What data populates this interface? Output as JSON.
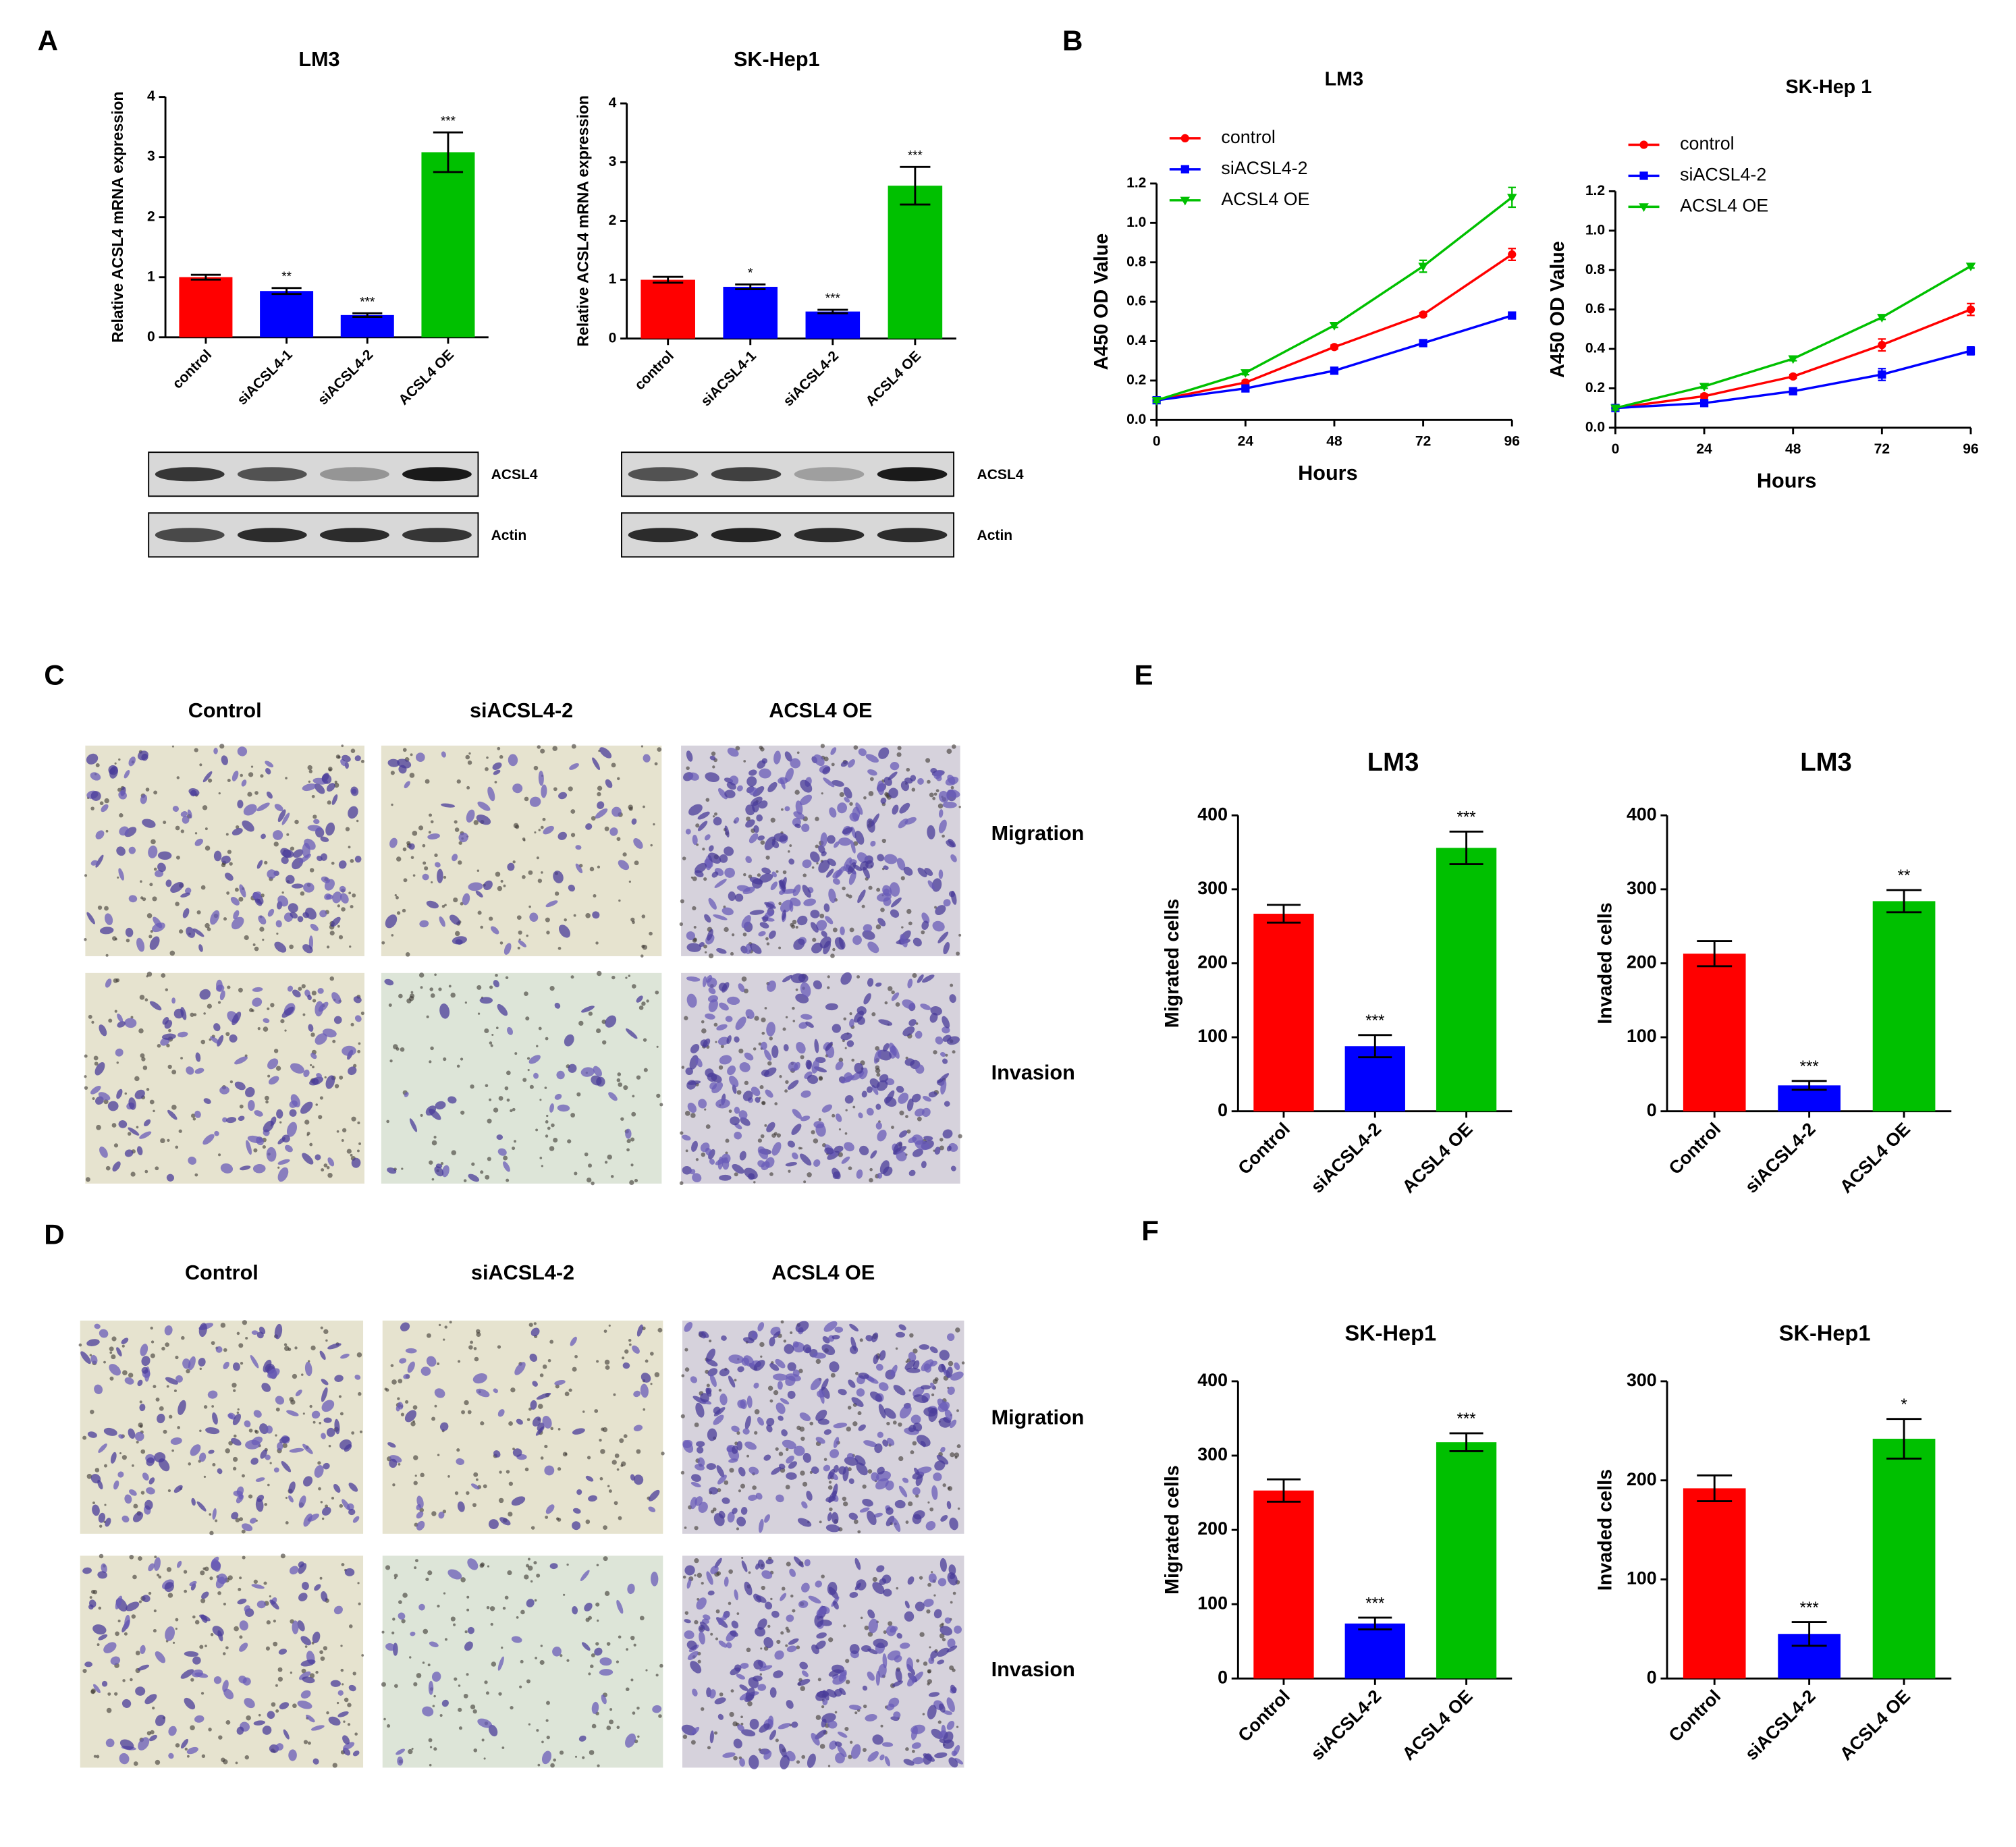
{
  "panel_labels": [
    "A",
    "B",
    "C",
    "D",
    "E",
    "F"
  ],
  "blots": [
    {
      "bands": [
        "ACSL4",
        "Actin"
      ]
    },
    {
      "bands": [
        "ACSL4",
        "Actin"
      ]
    }
  ],
  "micrographs": [
    {
      "columns": [
        "Control",
        "siACSL4-2",
        "ACSL4 OE"
      ],
      "rows": [
        "Migration",
        "Invasion"
      ]
    },
    {
      "columns": [
        "Control",
        "siACSL4-2",
        "ACSL4 OE"
      ],
      "rows": [
        "Migration",
        "Invasion"
      ]
    }
  ],
  "chart_data": [
    {
      "type": "bar",
      "title": "LM3",
      "y_label": "Relative ACSL4 mRNA expression",
      "categories": [
        "control",
        "siACSL4-1",
        "siACSL4-2",
        "ACSL4 OE"
      ],
      "values": [
        1.0,
        0.77,
        0.37,
        3.08
      ],
      "errors": [
        0.04,
        0.05,
        0.03,
        0.33
      ],
      "annotations": [
        null,
        "**",
        "***",
        "***"
      ],
      "colors": [
        "#ff0000",
        "#0000ff",
        "#0000ff",
        "#00c000"
      ],
      "ylim": [
        0,
        4
      ],
      "yticks": [
        0,
        1,
        2,
        3,
        4
      ]
    },
    {
      "type": "bar",
      "title": "SK-Hep1",
      "y_label": "Relative ACSL4 mRNA expression",
      "categories": [
        "control",
        "siACSL4-1",
        "siACSL4-2",
        "ACSL4 OE"
      ],
      "values": [
        1.0,
        0.88,
        0.46,
        2.6
      ],
      "errors": [
        0.05,
        0.04,
        0.03,
        0.32
      ],
      "annotations": [
        null,
        "*",
        "***",
        "***"
      ],
      "colors": [
        "#ff0000",
        "#0000ff",
        "#0000ff",
        "#00c000"
      ],
      "ylim": [
        0,
        4
      ],
      "yticks": [
        0,
        1,
        2,
        3,
        4
      ]
    },
    {
      "type": "line",
      "title": "LM3",
      "x_label": "Hours",
      "y_label": "A450 OD Value",
      "x": [
        0,
        24,
        48,
        72,
        96
      ],
      "series": [
        {
          "name": "control",
          "color": "#ff0000",
          "marker": "circle",
          "values": [
            0.1,
            0.19,
            0.37,
            0.535,
            0.84
          ],
          "errors": [
            0.01,
            0.01,
            0.01,
            0.01,
            0.03
          ]
        },
        {
          "name": "siACSL4-2",
          "color": "#0000ff",
          "marker": "square",
          "values": [
            0.1,
            0.16,
            0.25,
            0.39,
            0.53
          ],
          "errors": [
            0.01,
            0.01,
            0.01,
            0.01,
            0.01
          ]
        },
        {
          "name": "ACSL4 OE",
          "color": "#00c000",
          "marker": "triangle-down",
          "values": [
            0.1,
            0.24,
            0.48,
            0.78,
            1.13
          ],
          "errors": [
            0.01,
            0.01,
            0.01,
            0.03,
            0.05
          ]
        }
      ],
      "xlim": [
        0,
        96
      ],
      "xticks": [
        0,
        24,
        48,
        72,
        96
      ],
      "ylim": [
        0,
        1.2
      ],
      "yticks": [
        {
          "value": 0,
          "label": "0.0"
        },
        0.2,
        0.4,
        0.6,
        0.8,
        {
          "value": 1,
          "label": "1.0"
        },
        1.2
      ],
      "legend": "top-left"
    },
    {
      "type": "line",
      "title": "SK-Hep 1",
      "x_label": "Hours",
      "y_label": "A450 OD Value",
      "x": [
        0,
        24,
        48,
        72,
        96
      ],
      "series": [
        {
          "name": "control",
          "color": "#ff0000",
          "marker": "circle",
          "values": [
            0.1,
            0.16,
            0.26,
            0.42,
            0.6
          ],
          "errors": [
            0.01,
            0.01,
            0.01,
            0.03,
            0.03
          ]
        },
        {
          "name": "siACSL4-2",
          "color": "#0000ff",
          "marker": "square",
          "values": [
            0.1,
            0.125,
            0.185,
            0.27,
            0.39
          ],
          "errors": [
            0.01,
            0.01,
            0.01,
            0.03,
            0.02
          ]
        },
        {
          "name": "ACSL4 OE",
          "color": "#00c000",
          "marker": "triangle-down",
          "values": [
            0.1,
            0.21,
            0.35,
            0.56,
            0.82
          ],
          "errors": [
            0.01,
            0.01,
            0.01,
            0.01,
            0.01
          ]
        }
      ],
      "xlim": [
        0,
        96
      ],
      "xticks": [
        0,
        24,
        48,
        72,
        96
      ],
      "ylim": [
        0,
        1.2
      ],
      "yticks": [
        {
          "value": 0,
          "label": "0.0"
        },
        0.2,
        0.4,
        0.6,
        0.8,
        {
          "value": 1,
          "label": "1.0"
        },
        1.2
      ],
      "legend": "top-left"
    },
    {
      "type": "bar",
      "title": "LM3",
      "y_label": "Migrated cells",
      "categories": [
        "Control",
        "siACSL4-2",
        "ACSL4 OE"
      ],
      "values": [
        267,
        88,
        356
      ],
      "errors": [
        12,
        15,
        22
      ],
      "annotations": [
        null,
        "***",
        "***"
      ],
      "colors": [
        "#ff0000",
        "#0000ff",
        "#00c000"
      ],
      "ylim": [
        0,
        400
      ],
      "yticks": [
        0,
        100,
        200,
        300,
        400
      ]
    },
    {
      "type": "bar",
      "title": "LM3",
      "y_label": "Invaded cells",
      "categories": [
        "Control",
        "siACSL4-2",
        "ACSL4 OE"
      ],
      "values": [
        213,
        35,
        284
      ],
      "errors": [
        17,
        6,
        15
      ],
      "annotations": [
        null,
        "***",
        "**"
      ],
      "colors": [
        "#ff0000",
        "#0000ff",
        "#00c000"
      ],
      "ylim": [
        0,
        400
      ],
      "yticks": [
        0,
        100,
        200,
        300,
        400
      ]
    },
    {
      "type": "bar",
      "title": "SK-Hep1",
      "y_label": "Migrated cells",
      "categories": [
        "Control",
        "siACSL4-2",
        "ACSL4 OE"
      ],
      "values": [
        253,
        74,
        318
      ],
      "errors": [
        15,
        8,
        12
      ],
      "annotations": [
        null,
        "***",
        "***"
      ],
      "colors": [
        "#ff0000",
        "#0000ff",
        "#00c000"
      ],
      "ylim": [
        0,
        400
      ],
      "yticks": [
        0,
        100,
        200,
        300,
        400
      ]
    },
    {
      "type": "bar",
      "title": "SK-Hep1",
      "y_label": "Invaded cells",
      "categories": [
        "Control",
        "siACSL4-2",
        "ACSL4 OE"
      ],
      "values": [
        192,
        45,
        242
      ],
      "errors": [
        13,
        12,
        20
      ],
      "annotations": [
        null,
        "***",
        "*"
      ],
      "colors": [
        "#ff0000",
        "#0000ff",
        "#00c000"
      ],
      "ylim": [
        0,
        300
      ],
      "yticks": [
        0,
        100,
        200,
        300
      ]
    }
  ]
}
